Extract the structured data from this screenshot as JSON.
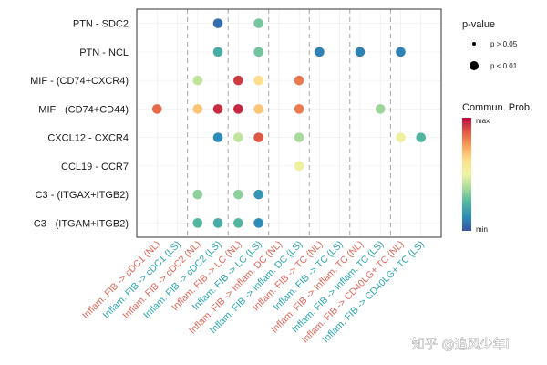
{
  "chart_data": {
    "type": "scatter",
    "title": "",
    "xlabel": "",
    "ylabel": "",
    "grid": true,
    "legend_placement": "right",
    "x_categories": [
      "Inflam. FIB -> cDC1 (NL)",
      "Inflam. FIB -> cDC1 (LS)",
      "Inflam. FIB -> cDC2 (NL)",
      "Inflam. FIB -> cDC2 (LS)",
      "Inflam. FIB -> LC (NL)",
      "Inflam. FIB -> LC (LS)",
      "Inflam. FIB -> Inflam. DC (NL)",
      "Inflam. FIB -> Inflam. DC (LS)",
      "Inflam. FIB -> TC (NL)",
      "Inflam. FIB -> TC (LS)",
      "Inflam. FIB -> Inflam. TC (NL)",
      "Inflam. FIB -> Inflam. TC (LS)",
      "Inflam. FIB -> CD40LG+ TC (NL)",
      "Inflam. FIB -> CD40LG+ TC (LS)"
    ],
    "x_label_colors": [
      "#e06659",
      "#2aa6ad",
      "#e06659",
      "#2aa6ad",
      "#e06659",
      "#2aa6ad",
      "#e06659",
      "#2aa6ad",
      "#e06659",
      "#2aa6ad",
      "#e06659",
      "#2aa6ad",
      "#e06659",
      "#2aa6ad"
    ],
    "y_categories": [
      "PTN - SDC2",
      "PTN - NCL",
      "MIF - (CD74+CXCR4)",
      "MIF - (CD74+CD44)",
      "CXCL12 - CXCR4",
      "CCL19 - CCR7",
      "C3 - (ITGAX+ITGB2)",
      "C3 - (ITGAM+ITGB2)"
    ],
    "dashed_separators_after_x": [
      2,
      4,
      6,
      8,
      10,
      12
    ],
    "points": [
      {
        "y": "PTN - SDC2",
        "x": "Inflam. FIB -> cDC2 (LS)",
        "prob": 0.06,
        "pvalue": "p < 0.01"
      },
      {
        "y": "PTN - SDC2",
        "x": "Inflam. FIB -> LC (LS)",
        "prob": 0.3,
        "pvalue": "p < 0.01"
      },
      {
        "y": "PTN - NCL",
        "x": "Inflam. FIB -> cDC2 (LS)",
        "prob": 0.22,
        "pvalue": "p < 0.01"
      },
      {
        "y": "PTN - NCL",
        "x": "Inflam. FIB -> LC (LS)",
        "prob": 0.3,
        "pvalue": "p < 0.01"
      },
      {
        "y": "PTN - NCL",
        "x": "Inflam. FIB -> TC (NL)",
        "prob": 0.1,
        "pvalue": "p < 0.01"
      },
      {
        "y": "PTN - NCL",
        "x": "Inflam. FIB -> Inflam. TC (NL)",
        "prob": 0.1,
        "pvalue": "p < 0.01"
      },
      {
        "y": "PTN - NCL",
        "x": "Inflam. FIB -> CD40LG+ TC (NL)",
        "prob": 0.1,
        "pvalue": "p < 0.01"
      },
      {
        "y": "MIF - (CD74+CXCR4)",
        "x": "Inflam. FIB -> cDC2 (NL)",
        "prob": 0.42,
        "pvalue": "p < 0.01"
      },
      {
        "y": "MIF - (CD74+CXCR4)",
        "x": "Inflam. FIB -> LC (LS)",
        "prob": 0.62,
        "pvalue": "p < 0.01"
      },
      {
        "y": "MIF - (CD74+CXCR4)",
        "x": "Inflam. FIB -> LC (NL)",
        "prob": 0.93,
        "pvalue": "p < 0.01"
      },
      {
        "y": "MIF - (CD74+CXCR4)",
        "x": "Inflam. FIB -> Inflam. DC (LS)",
        "prob": 0.82,
        "pvalue": "p < 0.01"
      },
      {
        "y": "MIF - (CD74+CD44)",
        "x": "Inflam. FIB -> cDC1 (NL)",
        "prob": 0.85,
        "pvalue": "p < 0.01"
      },
      {
        "y": "MIF - (CD74+CD44)",
        "x": "Inflam. FIB -> cDC2 (NL)",
        "prob": 0.68,
        "pvalue": "p < 0.01"
      },
      {
        "y": "MIF - (CD74+CD44)",
        "x": "Inflam. FIB -> cDC2 (LS)",
        "prob": 0.95,
        "pvalue": "p < 0.01"
      },
      {
        "y": "MIF - (CD74+CD44)",
        "x": "Inflam. FIB -> LC (LS)",
        "prob": 0.68,
        "pvalue": "p < 0.01"
      },
      {
        "y": "MIF - (CD74+CD44)",
        "x": "Inflam. FIB -> LC (NL)",
        "prob": 0.96,
        "pvalue": "p < 0.01"
      },
      {
        "y": "MIF - (CD74+CD44)",
        "x": "Inflam. FIB -> Inflam. DC (LS)",
        "prob": 0.82,
        "pvalue": "p < 0.01"
      },
      {
        "y": "MIF - (CD74+CD44)",
        "x": "Inflam. FIB -> Inflam. TC (LS)",
        "prob": 0.36,
        "pvalue": "p < 0.01"
      },
      {
        "y": "CXCL12 - CXCR4",
        "x": "Inflam. FIB -> cDC2 (LS)",
        "prob": 0.12,
        "pvalue": "p < 0.01"
      },
      {
        "y": "CXCL12 - CXCR4",
        "x": "Inflam. FIB -> LC (LS)",
        "prob": 0.88,
        "pvalue": "p < 0.01"
      },
      {
        "y": "CXCL12 - CXCR4",
        "x": "Inflam. FIB -> LC (NL)",
        "prob": 0.42,
        "pvalue": "p < 0.01"
      },
      {
        "y": "CXCL12 - CXCR4",
        "x": "Inflam. FIB -> Inflam. DC (LS)",
        "prob": 0.38,
        "pvalue": "p < 0.01"
      },
      {
        "y": "CXCL12 - CXCR4",
        "x": "Inflam. FIB -> CD40LG+ TC (NL)",
        "prob": 0.52,
        "pvalue": "p < 0.01"
      },
      {
        "y": "CXCL12 - CXCR4",
        "x": "Inflam. FIB -> CD40LG+ TC (LS)",
        "prob": 0.25,
        "pvalue": "p < 0.01"
      },
      {
        "y": "CCL19 - CCR7",
        "x": "Inflam. FIB -> Inflam. DC (LS)",
        "prob": 0.52,
        "pvalue": "p < 0.01"
      },
      {
        "y": "C3 - (ITGAX+ITGB2)",
        "x": "Inflam. FIB -> cDC2 (NL)",
        "prob": 0.34,
        "pvalue": "p < 0.01"
      },
      {
        "y": "C3 - (ITGAX+ITGB2)",
        "x": "Inflam. FIB -> LC (LS)",
        "prob": 0.15,
        "pvalue": "p < 0.01"
      },
      {
        "y": "C3 - (ITGAX+ITGB2)",
        "x": "Inflam. FIB -> LC (NL)",
        "prob": 0.34,
        "pvalue": "p < 0.01"
      },
      {
        "y": "C3 - (ITGAM+ITGB2)",
        "x": "Inflam. FIB -> cDC2 (LS)",
        "prob": 0.22,
        "pvalue": "p < 0.01"
      },
      {
        "y": "C3 - (ITGAM+ITGB2)",
        "x": "Inflam. FIB -> cDC2 (NL)",
        "prob": 0.25,
        "pvalue": "p < 0.01"
      },
      {
        "y": "C3 - (ITGAM+ITGB2)",
        "x": "Inflam. FIB -> LC (LS)",
        "prob": 0.12,
        "pvalue": "p < 0.01"
      },
      {
        "y": "C3 - (ITGAM+ITGB2)",
        "x": "Inflam. FIB -> LC (NL)",
        "prob": 0.25,
        "pvalue": "p < 0.01"
      }
    ],
    "legend": {
      "size_title": "p-value",
      "size_items": [
        "p > 0.05",
        "p < 0.01"
      ],
      "color_title": "Commun. Prob.",
      "color_max": "max",
      "color_min": "min",
      "colorscale": [
        "#3a52a2",
        "#2e8db8",
        "#52b69e",
        "#a6d99c",
        "#eef4a4",
        "#fddf8a",
        "#f7a35b",
        "#e25a45",
        "#b5103e"
      ]
    }
  },
  "watermark": "知乎 @追风少年i"
}
